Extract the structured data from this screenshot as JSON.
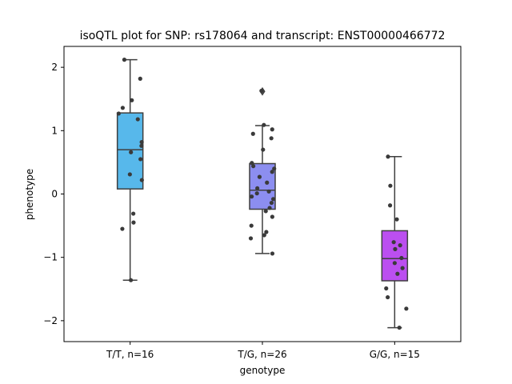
{
  "chart_data": {
    "type": "box",
    "title": "isoQTL plot for SNP: rs178064 and transcript: ENST00000466772",
    "xlabel": "genotype",
    "ylabel": "phenotype",
    "ylim": [
      -2.33,
      2.33
    ],
    "yticks": [
      2,
      1,
      0,
      -1,
      -2
    ],
    "ytick_labels": [
      "2",
      "1",
      "0",
      "−1",
      "−2"
    ],
    "grid": false,
    "categories": [
      "T/T, n=16",
      "T/G, n=26",
      "G/G, n=15"
    ],
    "boxes": [
      {
        "category": "T/T, n=16",
        "color": "#57b8eb",
        "q1": 0.08,
        "median": 0.7,
        "q3": 1.28,
        "whisker_low": -1.36,
        "whisker_high": 2.12,
        "outliers": [],
        "points": [
          2.12,
          1.82,
          1.48,
          1.36,
          1.27,
          1.18,
          0.82,
          0.76,
          0.66,
          0.55,
          0.31,
          0.22,
          -0.31,
          -0.45,
          -0.55,
          -1.36
        ]
      },
      {
        "category": "T/G, n=26",
        "color": "#8c8ef0",
        "q1": -0.24,
        "median": 0.06,
        "q3": 0.48,
        "whisker_low": -0.94,
        "whisker_high": 1.08,
        "outliers": [
          1.62
        ],
        "points": [
          1.63,
          1.09,
          1.02,
          0.95,
          0.88,
          0.7,
          0.49,
          0.44,
          0.4,
          0.35,
          0.27,
          0.18,
          0.09,
          0.04,
          0.01,
          -0.04,
          -0.08,
          -0.14,
          -0.22,
          -0.27,
          -0.36,
          -0.5,
          -0.6,
          -0.65,
          -0.7,
          -0.94
        ]
      },
      {
        "category": "G/G, n=15",
        "color": "#bb4ff0",
        "q1": -1.37,
        "median": -1.02,
        "q3": -0.58,
        "whisker_low": -2.11,
        "whisker_high": 0.59,
        "outliers": [],
        "points": [
          0.59,
          0.13,
          -0.18,
          -0.4,
          -0.76,
          -0.81,
          -0.87,
          -1.01,
          -1.09,
          -1.17,
          -1.26,
          -1.49,
          -1.63,
          -1.81,
          -2.11
        ]
      }
    ]
  }
}
